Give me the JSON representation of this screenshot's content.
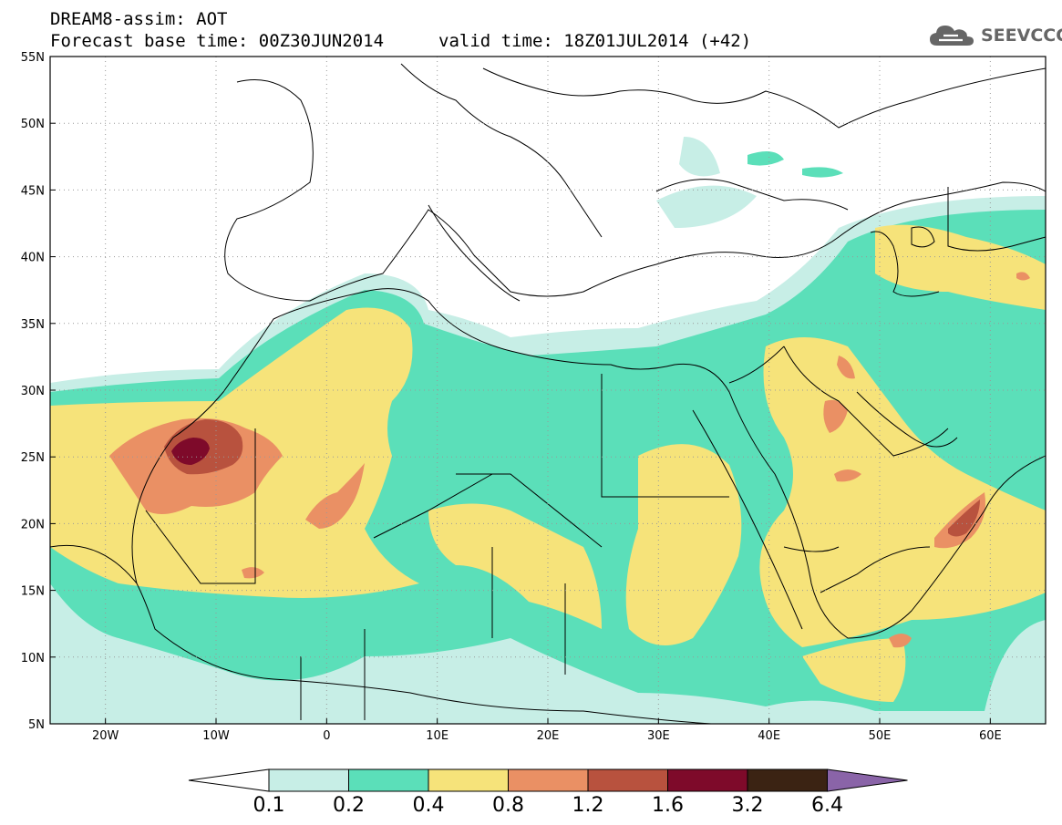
{
  "title": {
    "line1": "DREAM8-assim: AOT",
    "line2": "Forecast base time: 00Z30JUN2014",
    "line2b": "valid time: 18Z01JUL2014 (+42)"
  },
  "logo": {
    "icon": "cloud-icon",
    "text": "SEEVCCC",
    "color": "#666666"
  },
  "map": {
    "lon_range": [
      -25,
      65
    ],
    "lat_range": [
      5,
      55
    ],
    "lon_ticks": [
      {
        "v": -20,
        "label": "20W"
      },
      {
        "v": -10,
        "label": "10W"
      },
      {
        "v": 0,
        "label": "0"
      },
      {
        "v": 10,
        "label": "10E"
      },
      {
        "v": 20,
        "label": "20E"
      },
      {
        "v": 30,
        "label": "30E"
      },
      {
        "v": 40,
        "label": "40E"
      },
      {
        "v": 50,
        "label": "50E"
      },
      {
        "v": 60,
        "label": "60E"
      }
    ],
    "lat_ticks": [
      {
        "v": 55,
        "label": "55N"
      },
      {
        "v": 50,
        "label": "50N"
      },
      {
        "v": 45,
        "label": "45N"
      },
      {
        "v": 40,
        "label": "40N"
      },
      {
        "v": 35,
        "label": "35N"
      },
      {
        "v": 30,
        "label": "30N"
      },
      {
        "v": 25,
        "label": "25N"
      },
      {
        "v": 20,
        "label": "20N"
      },
      {
        "v": 15,
        "label": "15N"
      },
      {
        "v": 10,
        "label": "10N"
      },
      {
        "v": 5,
        "label": "5N"
      }
    ],
    "grid": "dotted"
  },
  "colorbar": {
    "labels": [
      "0.1",
      "0.2",
      "0.4",
      "0.8",
      "1.2",
      "1.6",
      "3.2",
      "6.4"
    ],
    "colors": [
      "#c7eee6",
      "#5bdfb9",
      "#f6e37a",
      "#ea9064",
      "#b8523e",
      "#7e0a2a",
      "#3b2313"
    ],
    "under_color": "#ffffff",
    "over_color": "#8a64a8"
  },
  "field_colors": {
    "c1": "#c7eee6",
    "c2": "#5bdfb9",
    "c3": "#f6e37a",
    "c4": "#ea9064",
    "c5": "#b8523e",
    "c6": "#7e0a2a"
  }
}
